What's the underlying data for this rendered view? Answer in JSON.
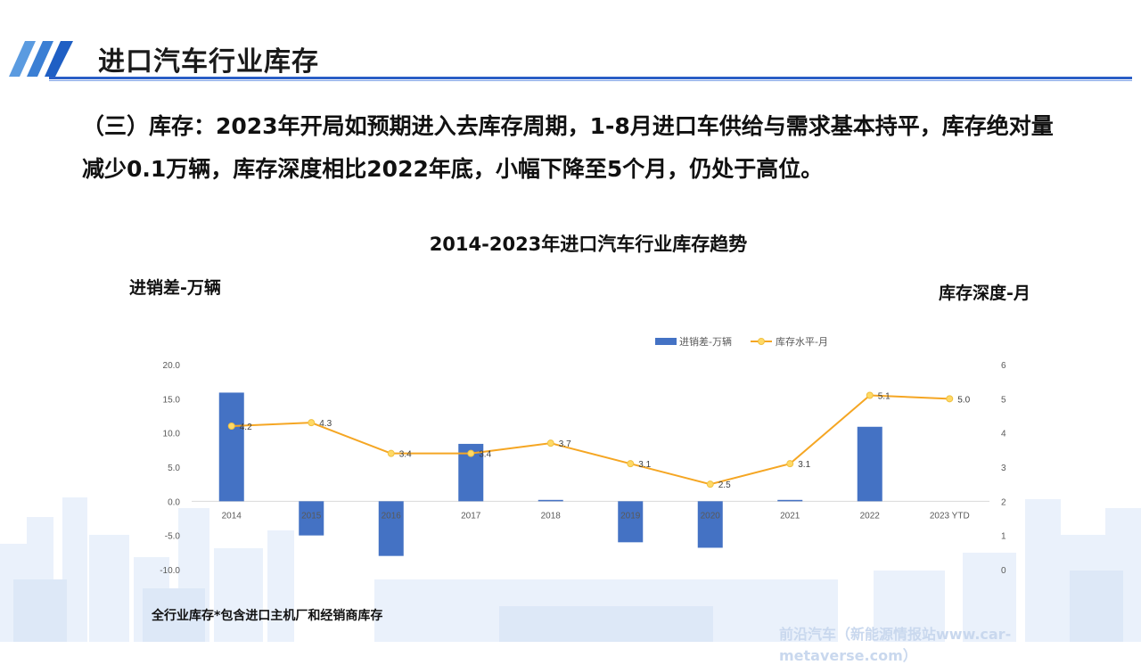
{
  "header": {
    "title": "进口汽车行业库存"
  },
  "body": {
    "line1": "（三）库存：2023年开局如预期进入去库存周期，1-8月进口车供给与需求基本持平，库存绝对量",
    "line2": "减少0.1万辆，库存深度相比2022年底，小幅下降至5个月，仍处于高位。"
  },
  "chart_data": {
    "type": "bar",
    "title": "2014-2023年进口汽车行业库存趋势",
    "ylabel": "进销差-万辆",
    "y2label": "库存深度-月",
    "categories": [
      "2014",
      "2015",
      "2016",
      "2017",
      "2018",
      "2019",
      "2020",
      "2021",
      "2022",
      "2023 YTD"
    ],
    "series": [
      {
        "name": "进销差-万辆",
        "type": "bar",
        "axis": "left",
        "color": "#4472c4",
        "values": [
          15.9,
          -5.0,
          -8.0,
          8.4,
          0.2,
          -6.0,
          -6.8,
          0.2,
          10.9,
          0.0
        ]
      },
      {
        "name": "库存水平-月",
        "type": "line",
        "axis": "right",
        "color": "#f5a623",
        "marker_color": "#ffd966",
        "values": [
          4.2,
          4.3,
          3.4,
          3.4,
          3.7,
          3.1,
          2.5,
          3.1,
          5.1,
          5.0
        ],
        "labels": [
          "4.2",
          "4.3",
          "3.4",
          "3.4",
          "3.7",
          "3.1",
          "2.5",
          "3.1",
          "5.1",
          "5.0"
        ]
      }
    ],
    "ylim": [
      -10,
      20
    ],
    "yticks": [
      "20.0",
      "15.0",
      "10.0",
      "5.0",
      "0.0",
      "-5.0",
      "-10.0"
    ],
    "y2lim": [
      0,
      6
    ],
    "y2ticks": [
      "6",
      "5",
      "4",
      "3",
      "2",
      "1",
      "0"
    ],
    "legend": "top-right",
    "grid": false
  },
  "footnote": "全行业库存*包含进口主机厂和经销商库存",
  "watermark": "前沿汽车（新能源情报站www.car-metaverse.com）"
}
